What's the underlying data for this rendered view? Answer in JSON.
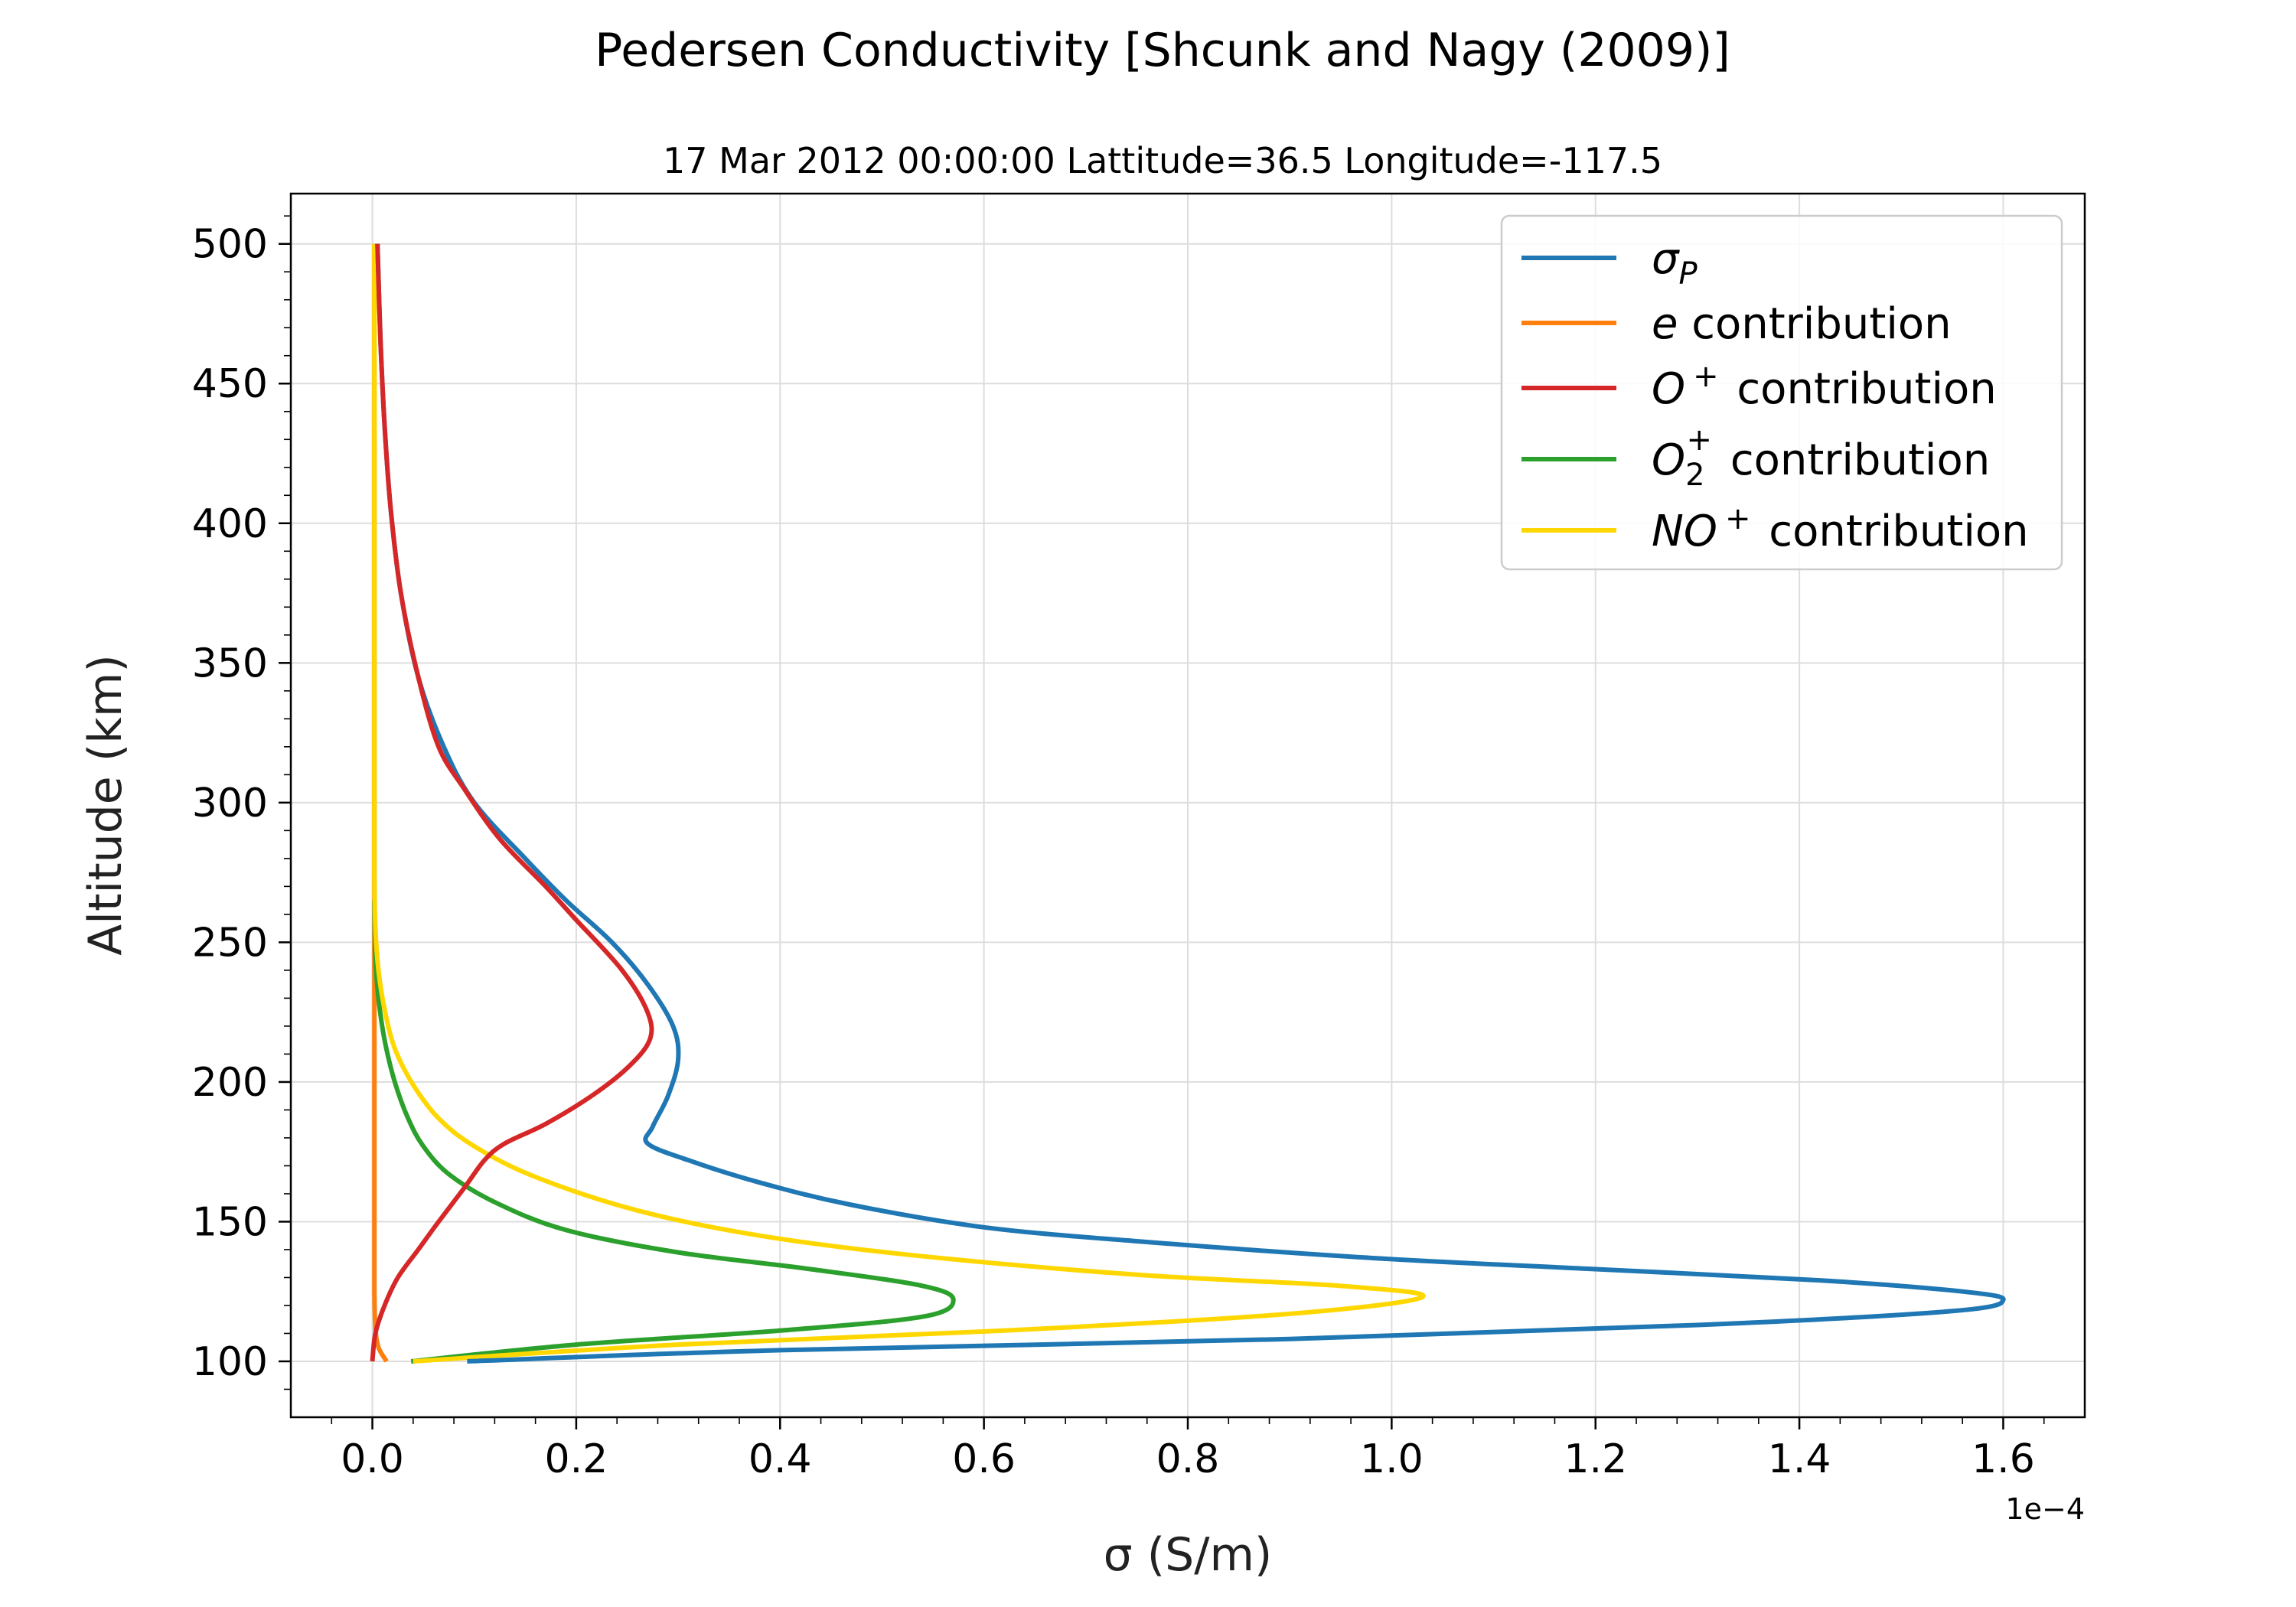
{
  "chart_data": {
    "type": "line",
    "title": "Pedersen Conductivity [Shcunk and Nagy (2009)]",
    "subtitle": "17 Mar 2012 00:00:00 Lattitude=36.5 Longitude=-117.5",
    "xlabel": "σ (S/m)",
    "ylabel": "Altitude (km)",
    "x_offset_label": "1e−4",
    "xlim": [
      -0.08,
      1.68
    ],
    "ylim": [
      80,
      518
    ],
    "x_ticks": [
      0.0,
      0.2,
      0.4,
      0.6,
      0.8,
      1.0,
      1.2,
      1.4,
      1.6
    ],
    "x_tick_labels": [
      "0.0",
      "0.2",
      "0.4",
      "0.6",
      "0.8",
      "1.0",
      "1.2",
      "1.4",
      "1.6"
    ],
    "y_ticks": [
      100,
      150,
      200,
      250,
      300,
      350,
      400,
      450,
      500
    ],
    "y_tick_labels": [
      "100",
      "150",
      "200",
      "250",
      "300",
      "350",
      "400",
      "450",
      "500"
    ],
    "grid": true,
    "legend_position": "top-right",
    "series": [
      {
        "name": "σP",
        "legend": {
          "base": "σ",
          "sub": "P",
          "sup": "",
          "suffix": ""
        },
        "color": "#1f77b4",
        "points": [
          [
            0.093,
            100
          ],
          [
            0.4,
            104
          ],
          [
            0.9,
            108
          ],
          [
            1.3,
            113
          ],
          [
            1.55,
            118
          ],
          [
            1.6,
            122
          ],
          [
            1.56,
            125
          ],
          [
            1.42,
            129
          ],
          [
            1.2,
            133
          ],
          [
            0.98,
            137
          ],
          [
            0.75,
            143
          ],
          [
            0.6,
            148
          ],
          [
            0.47,
            156
          ],
          [
            0.38,
            164
          ],
          [
            0.31,
            172
          ],
          [
            0.27,
            178
          ],
          [
            0.275,
            184
          ],
          [
            0.29,
            195
          ],
          [
            0.3,
            208
          ],
          [
            0.295,
            220
          ],
          [
            0.27,
            235
          ],
          [
            0.235,
            250
          ],
          [
            0.19,
            265
          ],
          [
            0.15,
            280
          ],
          [
            0.1,
            300
          ],
          [
            0.07,
            320
          ],
          [
            0.045,
            345
          ],
          [
            0.028,
            375
          ],
          [
            0.018,
            405
          ],
          [
            0.012,
            435
          ],
          [
            0.008,
            465
          ],
          [
            0.005,
            500
          ]
        ]
      },
      {
        "name": "e contribution",
        "legend": {
          "base": "e",
          "sub": "",
          "sup": "",
          "suffix": " contribution"
        },
        "color": "#ff7f0e",
        "points": [
          [
            0.014,
            100
          ],
          [
            0.006,
            105
          ],
          [
            0.003,
            112
          ],
          [
            0.002,
            125
          ],
          [
            0.002,
            150
          ],
          [
            0.002,
            200
          ],
          [
            0.002,
            250
          ],
          [
            0.002,
            300
          ],
          [
            0.002,
            400
          ],
          [
            0.002,
            500
          ]
        ]
      },
      {
        "name": "O+ contribution",
        "legend": {
          "base": "O",
          "sub": "",
          "sup": "+",
          "suffix": " contribution"
        },
        "color": "#d62728",
        "points": [
          [
            0.0,
            100
          ],
          [
            0.003,
            110
          ],
          [
            0.012,
            120
          ],
          [
            0.025,
            130
          ],
          [
            0.045,
            140
          ],
          [
            0.065,
            150
          ],
          [
            0.09,
            162
          ],
          [
            0.11,
            172
          ],
          [
            0.13,
            178
          ],
          [
            0.17,
            185
          ],
          [
            0.215,
            195
          ],
          [
            0.25,
            205
          ],
          [
            0.272,
            215
          ],
          [
            0.27,
            225
          ],
          [
            0.245,
            240
          ],
          [
            0.2,
            258
          ],
          [
            0.17,
            270
          ],
          [
            0.125,
            287
          ],
          [
            0.09,
            305
          ],
          [
            0.065,
            320
          ],
          [
            0.045,
            345
          ],
          [
            0.028,
            375
          ],
          [
            0.018,
            405
          ],
          [
            0.012,
            435
          ],
          [
            0.008,
            465
          ],
          [
            0.005,
            500
          ]
        ]
      },
      {
        "name": "O2+ contribution",
        "legend": {
          "base": "O",
          "sub": "2",
          "sup": "+",
          "suffix": " contribution"
        },
        "color": "#2ca02c",
        "points": [
          [
            0.038,
            100
          ],
          [
            0.2,
            106
          ],
          [
            0.4,
            111
          ],
          [
            0.54,
            116
          ],
          [
            0.57,
            122
          ],
          [
            0.54,
            127
          ],
          [
            0.43,
            133
          ],
          [
            0.3,
            139
          ],
          [
            0.19,
            147
          ],
          [
            0.12,
            157
          ],
          [
            0.075,
            167
          ],
          [
            0.05,
            177
          ],
          [
            0.035,
            187
          ],
          [
            0.022,
            200
          ],
          [
            0.012,
            215
          ],
          [
            0.006,
            230
          ],
          [
            0.003,
            245
          ],
          [
            0.002,
            265
          ]
        ]
      },
      {
        "name": "NO+ contribution",
        "legend": {
          "base": "NO",
          "sub": "",
          "sup": "+",
          "suffix": " contribution"
        },
        "color": "#ffd700",
        "points": [
          [
            0.04,
            100
          ],
          [
            0.3,
            106
          ],
          [
            0.62,
            111
          ],
          [
            0.9,
            117
          ],
          [
            1.03,
            123
          ],
          [
            0.95,
            127
          ],
          [
            0.75,
            131
          ],
          [
            0.53,
            138
          ],
          [
            0.38,
            145
          ],
          [
            0.26,
            154
          ],
          [
            0.16,
            166
          ],
          [
            0.1,
            177
          ],
          [
            0.065,
            187
          ],
          [
            0.04,
            199
          ],
          [
            0.022,
            212
          ],
          [
            0.012,
            226
          ],
          [
            0.006,
            240
          ],
          [
            0.003,
            255
          ],
          [
            0.002,
            275
          ],
          [
            0.002,
            320
          ],
          [
            0.002,
            400
          ],
          [
            0.002,
            500
          ]
        ]
      }
    ]
  }
}
